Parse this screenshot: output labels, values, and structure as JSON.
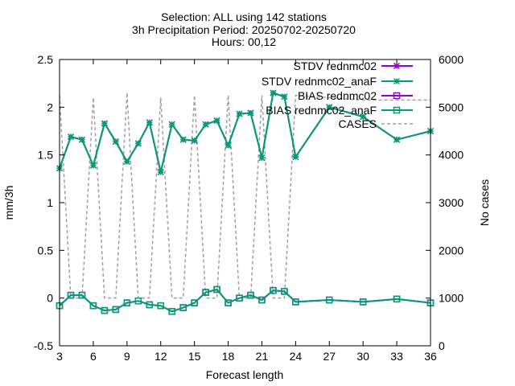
{
  "titles": [
    "Selection: ALL using   142 stations",
    "3h Precipitation   Period: 20250702-20250720",
    "Hours: 00,12"
  ],
  "chart_data": {
    "type": "line",
    "xlabel": "Forecast length",
    "ylabel": "mm/3h",
    "y2label": "No cases",
    "xlim": [
      3,
      36
    ],
    "ylim": [
      -0.5,
      2.5
    ],
    "y2lim": [
      0,
      6000
    ],
    "xticks": [
      "3",
      "6",
      "9",
      "12",
      "15",
      "18",
      "21",
      "24",
      "27",
      "30",
      "33",
      "36"
    ],
    "yticks": [
      "-0.5",
      "0",
      "0.5",
      "1",
      "1.5",
      "2",
      "2.5"
    ],
    "y2ticks": [
      "0",
      "1000",
      "2000",
      "3000",
      "4000",
      "5000",
      "6000"
    ],
    "x": [
      3,
      4,
      5,
      6,
      7,
      8,
      9,
      10,
      11,
      12,
      13,
      14,
      15,
      16,
      17,
      18,
      19,
      20,
      21,
      22,
      23,
      24,
      27,
      30,
      33,
      36
    ],
    "legend_position": "top-right",
    "grid": false,
    "series": [
      {
        "name": "STDV rednmc02",
        "axis": "y1",
        "color": "#9400d3",
        "marker": "star",
        "values": [
          1.36,
          1.69,
          1.66,
          1.39,
          1.83,
          1.64,
          1.43,
          1.62,
          1.84,
          1.32,
          1.82,
          1.66,
          1.65,
          1.82,
          1.86,
          1.6,
          1.93,
          1.94,
          1.47,
          2.15,
          2.11,
          1.48,
          2.0,
          1.9,
          1.66,
          1.75
        ]
      },
      {
        "name": "STDV rednmc02_anaF",
        "axis": "y1",
        "color": "#009e73",
        "marker": "star",
        "values": [
          1.36,
          1.69,
          1.66,
          1.39,
          1.83,
          1.64,
          1.43,
          1.62,
          1.84,
          1.32,
          1.82,
          1.66,
          1.65,
          1.82,
          1.86,
          1.6,
          1.93,
          1.94,
          1.47,
          2.15,
          2.11,
          1.48,
          2.0,
          1.9,
          1.66,
          1.75
        ]
      },
      {
        "name": "BIAS rednmc02",
        "axis": "y1",
        "color": "#9400d3",
        "marker": "square",
        "values": [
          -0.08,
          0.03,
          0.03,
          -0.08,
          -0.13,
          -0.12,
          -0.05,
          -0.03,
          -0.07,
          -0.08,
          -0.14,
          -0.1,
          -0.05,
          0.06,
          0.09,
          -0.05,
          0.0,
          0.03,
          -0.02,
          0.08,
          0.07,
          -0.04,
          -0.02,
          -0.04,
          -0.01,
          -0.05
        ]
      },
      {
        "name": "BIAS rednmc02_anaF",
        "axis": "y1",
        "color": "#009e73",
        "marker": "square",
        "values": [
          -0.08,
          0.03,
          0.03,
          -0.08,
          -0.13,
          -0.12,
          -0.05,
          -0.03,
          -0.07,
          -0.08,
          -0.14,
          -0.1,
          -0.05,
          0.06,
          0.09,
          -0.05,
          0.0,
          0.03,
          -0.02,
          0.08,
          0.07,
          -0.04,
          -0.02,
          -0.04,
          -0.01,
          -0.05
        ]
      },
      {
        "name": "CASES",
        "axis": "y2",
        "color": "#a0a0a0",
        "dash": true,
        "values": [
          5250,
          1000,
          1000,
          5200,
          1000,
          1000,
          5300,
          1000,
          1000,
          5200,
          1000,
          1000,
          5250,
          1000,
          1000,
          5250,
          1000,
          1000,
          5250,
          1000,
          1000,
          5250,
          5200,
          5150,
          5150,
          5150
        ]
      }
    ]
  }
}
